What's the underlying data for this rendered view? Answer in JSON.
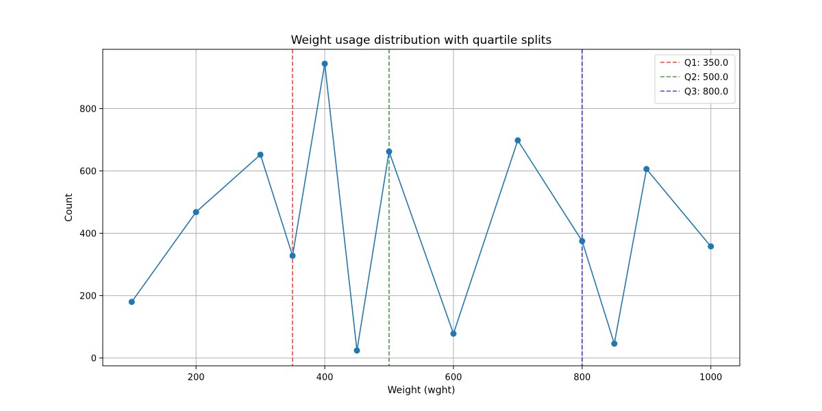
{
  "chart_data": {
    "type": "line",
    "title": "Weight usage distribution with quartile splits",
    "xlabel": "Weight (wght)",
    "ylabel": "Count",
    "xlim": [
      55,
      1045
    ],
    "ylim": [
      -25,
      990
    ],
    "x_ticks": [
      200,
      400,
      600,
      800,
      1000
    ],
    "y_ticks": [
      0,
      200,
      400,
      600,
      800
    ],
    "grid": true,
    "legend_position": "top-right",
    "series": [
      {
        "color": "#1f77b4",
        "marker": "circle",
        "x": [
          100,
          200,
          300,
          350,
          400,
          450,
          500,
          600,
          700,
          800,
          850,
          900,
          1000
        ],
        "y": [
          180,
          468,
          652,
          328,
          944,
          24,
          662,
          78,
          698,
          375,
          46,
          606,
          358
        ]
      }
    ],
    "reference_lines": [
      {
        "label": "Q1: 350.0",
        "x": 350,
        "color": "#ff0000"
      },
      {
        "label": "Q2: 500.0",
        "x": 500,
        "color": "#008000"
      },
      {
        "label": "Q3: 800.0",
        "x": 800,
        "color": "#0000ff"
      }
    ]
  }
}
